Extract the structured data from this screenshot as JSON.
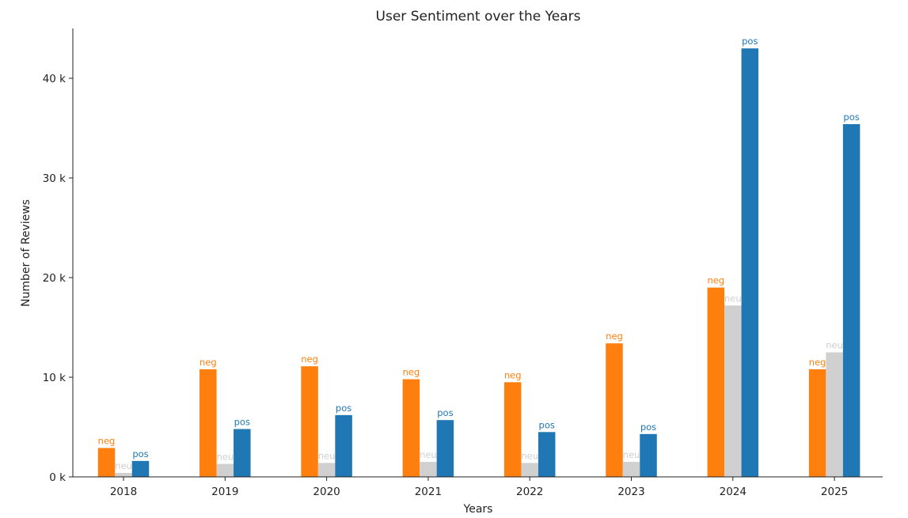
{
  "chart_data": {
    "type": "bar",
    "title": "User Sentiment over the Years",
    "xlabel": "Years",
    "ylabel": "Number of Reviews",
    "categories": [
      "2018",
      "2019",
      "2020",
      "2021",
      "2022",
      "2023",
      "2024",
      "2025"
    ],
    "ylim": [
      0,
      45000
    ],
    "yticks": [
      {
        "value": 0,
        "label": "0 k"
      },
      {
        "value": 10000,
        "label": "10 k"
      },
      {
        "value": 20000,
        "label": "20 k"
      },
      {
        "value": 30000,
        "label": "30 k"
      },
      {
        "value": 40000,
        "label": "40 k"
      }
    ],
    "grid": false,
    "series": [
      {
        "name": "neg",
        "color": "#ff7f0e",
        "label_color": "#ff7f0e",
        "values": [
          2900,
          10800,
          11100,
          9800,
          9500,
          13400,
          19000,
          10800
        ]
      },
      {
        "name": "neu",
        "color": "#d0d0d0",
        "label_color": "#cfcfcf",
        "values": [
          400,
          1300,
          1400,
          1500,
          1400,
          1500,
          17200,
          12500
        ]
      },
      {
        "name": "pos",
        "color": "#1f77b4",
        "label_color": "#1f77b4",
        "values": [
          1600,
          4800,
          6200,
          5700,
          4500,
          4300,
          43000,
          35400
        ]
      }
    ]
  }
}
